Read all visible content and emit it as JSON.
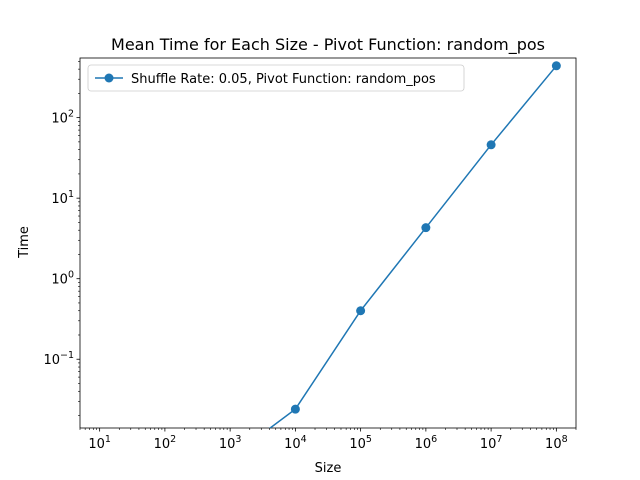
{
  "chart_data": {
    "type": "line",
    "title": "Mean Time for Each Size - Pivot Function: random_pos",
    "xlabel": "Size",
    "ylabel": "Time",
    "xscale": "log",
    "yscale": "log",
    "xlim": [
      5,
      200000000
    ],
    "ylim": [
      0.014,
      550
    ],
    "grid": false,
    "legend_position": "upper-left",
    "x_ticks": [
      {
        "base": "10",
        "exp": "1",
        "value": 10
      },
      {
        "base": "10",
        "exp": "2",
        "value": 100
      },
      {
        "base": "10",
        "exp": "3",
        "value": 1000
      },
      {
        "base": "10",
        "exp": "4",
        "value": 10000
      },
      {
        "base": "10",
        "exp": "5",
        "value": 100000
      },
      {
        "base": "10",
        "exp": "6",
        "value": 1000000
      },
      {
        "base": "10",
        "exp": "7",
        "value": 10000000
      },
      {
        "base": "10",
        "exp": "8",
        "value": 100000000
      }
    ],
    "y_ticks": [
      {
        "base": "10",
        "exp": "−1",
        "value": 0.1
      },
      {
        "base": "10",
        "exp": "0",
        "value": 1
      },
      {
        "base": "10",
        "exp": "1",
        "value": 10
      },
      {
        "base": "10",
        "exp": "2",
        "value": 100
      }
    ],
    "series": [
      {
        "name": "Shuffle Rate: 0.05, Pivot Function: random_pos",
        "color": "#1f77b4",
        "marker": "circle",
        "x": [
          1000,
          10000,
          100000,
          1000000,
          10000000,
          100000000
        ],
        "y": [
          0,
          0.024,
          0.4,
          4.3,
          46,
          440
        ]
      }
    ]
  }
}
